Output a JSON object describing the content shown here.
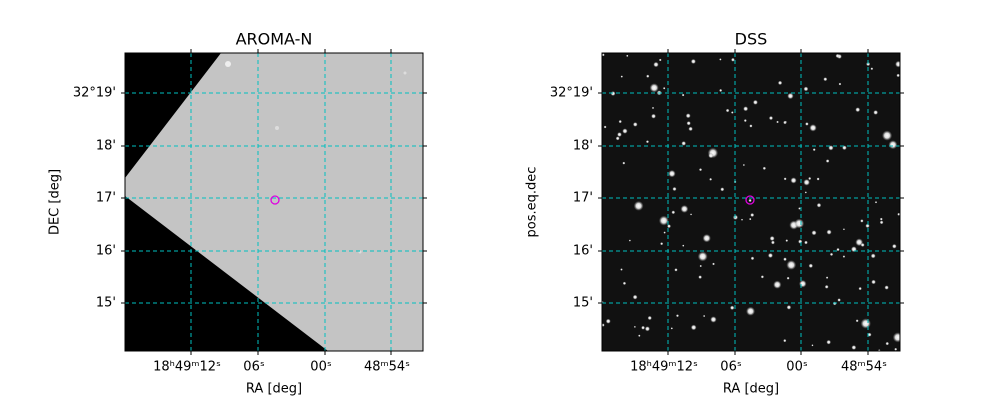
{
  "panels": [
    {
      "title": "AROMA-N",
      "xlabel": "RA [deg]",
      "ylabel": "DEC [deg]",
      "xticks": [
        "18ʰ49ᵐ12ˢ",
        "06ˢ",
        "00ˢ",
        "48ᵐ54ˢ"
      ],
      "yticks": [
        "32°19'",
        "18'",
        "17'",
        "16'",
        "15'"
      ]
    },
    {
      "title": "DSS",
      "xlabel": "RA [deg]",
      "ylabel": "pos.eq.dec",
      "xticks": [
        "18ʰ49ᵐ12ˢ",
        "06ˢ",
        "00ˢ",
        "48ᵐ54ˢ"
      ],
      "yticks": [
        "32°19'",
        "18'",
        "17'",
        "16'",
        "15'"
      ]
    }
  ]
}
